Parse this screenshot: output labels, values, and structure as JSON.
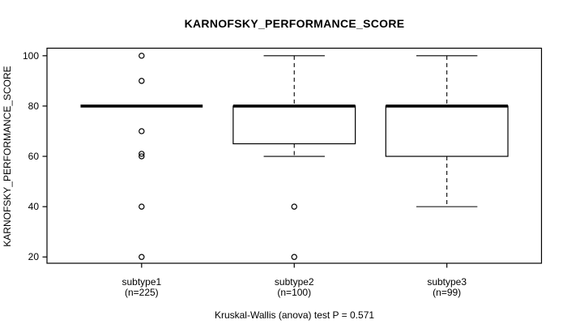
{
  "chart_data": {
    "type": "boxplot",
    "title": "KARNOFSKY_PERFORMANCE_SCORE",
    "ylabel": "KARNOFSKY_PERFORMANCE_SCORE",
    "xlabel": "",
    "footnote": "Kruskal-Wallis (anova) test P = 0.571",
    "ylim": [
      17.5,
      103
    ],
    "yticks": [
      20,
      40,
      60,
      80,
      100
    ],
    "grid": false,
    "legend": "none",
    "groups": [
      {
        "label": "subtype1",
        "n_label": "(n=225)",
        "n": 225,
        "whisker_low": 80,
        "q1": 80,
        "median": 80,
        "q3": 80,
        "whisker_high": 80,
        "outliers": [
          100,
          90,
          70,
          61,
          60,
          40,
          20
        ]
      },
      {
        "label": "subtype2",
        "n_label": "(n=100)",
        "n": 100,
        "whisker_low": 60,
        "q1": 65,
        "median": 80,
        "q3": 80,
        "whisker_high": 100,
        "outliers": [
          40,
          20
        ]
      },
      {
        "label": "subtype3",
        "n_label": "(n=99)",
        "n": 99,
        "whisker_low": 40,
        "q1": 60,
        "median": 80,
        "q3": 80,
        "whisker_high": 100,
        "outliers": []
      }
    ],
    "colors": {
      "stroke": "#000000",
      "background": "#ffffff",
      "box_fill": "#ffffff"
    }
  }
}
